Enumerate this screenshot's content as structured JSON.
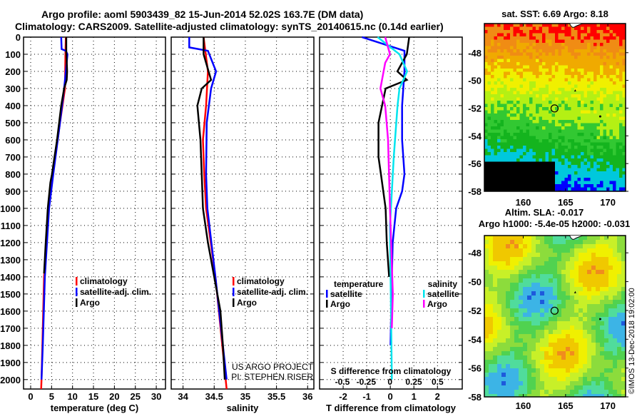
{
  "title_line1": "Argo profile: aoml 5903439_82 15-Jun-2014 52.02S 163.7E (DM data)",
  "title_line2": "Climatology: CARS2009. Satellite-adjusted climatology: synTS_20140615.nc (0.14d earlier)",
  "colors": {
    "argo": "#000000",
    "climatology": "#ff0000",
    "satellite": "#0000ff",
    "s_satellite": "#00e5ee",
    "s_argo": "#ff00ff"
  },
  "depth_axis": {
    "ylim": [
      2055,
      0
    ],
    "ticks": [
      0,
      100,
      200,
      300,
      400,
      500,
      600,
      700,
      800,
      900,
      1000,
      1100,
      1200,
      1300,
      1400,
      1500,
      1600,
      1700,
      1800,
      1900,
      2000
    ]
  },
  "chart_data": [
    {
      "type": "line",
      "xlabel": "temperature (deg C)",
      "xlim": [
        -1.7,
        32.2
      ],
      "xticks": [
        0,
        5,
        10,
        15,
        20,
        25,
        30
      ],
      "legend": [
        "climatology",
        "satellite-adj. clim.",
        "Argo"
      ],
      "series": [
        {
          "name": "climatology",
          "color": "#ff0000",
          "depth": [
            0,
            100,
            300,
            500,
            800,
            1000,
            1400,
            2000,
            2055
          ],
          "values": [
            8.4,
            8.3,
            8.2,
            7.0,
            5.3,
            4.2,
            3.2,
            2.6,
            2.5
          ]
        },
        {
          "name": "satellite-adj. clim.",
          "color": "#0000ff",
          "depth": [
            0,
            70,
            80,
            100,
            200,
            300,
            500,
            800,
            1000,
            1400,
            1800,
            2000
          ],
          "values": [
            7.3,
            7.4,
            8.4,
            8.8,
            8.4,
            8.0,
            7.0,
            5.4,
            4.4,
            3.4,
            2.9,
            2.6
          ]
        },
        {
          "name": "Argo",
          "color": "#000000",
          "depth": [
            0,
            80,
            200,
            250,
            300,
            400,
            500,
            600,
            700,
            800,
            850,
            900,
            1000,
            1200,
            1380
          ],
          "values": [
            8.5,
            8.5,
            8.7,
            8.6,
            8.0,
            7.3,
            6.8,
            6.3,
            5.7,
            5.1,
            4.7,
            4.5,
            4.1,
            3.6,
            3.2
          ]
        }
      ]
    },
    {
      "type": "line",
      "xlabel": "salinity",
      "xlim": [
        33.81,
        36.1
      ],
      "xticks": [
        34,
        34.5,
        35,
        35.5,
        36
      ],
      "legend": [
        "climatology",
        "satellite-adj. clim.",
        "Argo"
      ],
      "annotation": [
        "US ARGO PROJECT",
        "PI: STEPHEN RISER"
      ],
      "series": [
        {
          "name": "climatology",
          "color": "#ff0000",
          "depth": [
            0,
            200,
            400,
            600,
            800,
            1000,
            1400,
            2055
          ],
          "values": [
            34.33,
            34.4,
            34.37,
            34.32,
            34.34,
            34.37,
            34.52,
            34.7
          ]
        },
        {
          "name": "satellite-adj. clim.",
          "color": "#0000ff",
          "depth": [
            0,
            60,
            80,
            200,
            300,
            500,
            800,
            1000,
            1400,
            2000
          ],
          "values": [
            34.1,
            34.1,
            34.4,
            34.53,
            34.45,
            34.38,
            34.37,
            34.39,
            34.52,
            34.7
          ]
        },
        {
          "name": "Argo",
          "color": "#000000",
          "depth": [
            0,
            100,
            250,
            300,
            400,
            600,
            800,
            1000,
            1200,
            1400,
            1600,
            1800,
            2000
          ],
          "values": [
            34.33,
            34.33,
            34.45,
            34.3,
            34.23,
            34.28,
            34.3,
            34.32,
            34.4,
            34.5,
            34.6,
            34.64,
            34.67
          ]
        }
      ]
    },
    {
      "type": "line",
      "xlabel": "T difference from climatology",
      "xlim": [
        -3,
        3.05
      ],
      "xticks": [
        -2,
        -1,
        0,
        1,
        2
      ],
      "secondary_xlabel": "S difference from climatology",
      "secondary_xlim": [
        -0.74,
        0.76
      ],
      "secondary_xticks": [
        -0.5,
        -0.25,
        0,
        0.25,
        0.5
      ],
      "secondary_xtick_labels": [
        "-0.5",
        "-0.25",
        "0",
        "0.25",
        "0.5"
      ],
      "legend_groups": [
        {
          "title": "temperature",
          "items": [
            "satellite",
            "Argo"
          ]
        },
        {
          "title": "salinity",
          "items": [
            "satellite",
            "Argo"
          ]
        }
      ],
      "series": [
        {
          "name": "T satellite",
          "axis": "T",
          "color": "#0000ff",
          "depth": [
            0,
            80,
            200,
            400,
            600,
            800,
            900,
            1000,
            1200,
            1500,
            1800
          ],
          "values": [
            -1.2,
            0.6,
            0.6,
            0.5,
            0.5,
            0.6,
            0.5,
            0.25,
            0.1,
            0.05,
            0.01
          ]
        },
        {
          "name": "T Argo",
          "axis": "T",
          "color": "#000000",
          "depth": [
            0,
            100,
            200,
            250,
            300,
            500,
            700,
            800,
            900,
            1000,
            1200,
            1400
          ],
          "values": [
            0.8,
            0.7,
            0.3,
            0.7,
            -0.2,
            -0.5,
            -0.5,
            -0.4,
            -0.3,
            -0.2,
            -0.15,
            -0.05
          ]
        },
        {
          "name": "S satellite",
          "axis": "S",
          "color": "#00e5ee",
          "depth": [
            0,
            100,
            200,
            300,
            400,
            700,
            1100,
            2000
          ],
          "values": [
            -0.13,
            0.1,
            0.18,
            0.1,
            0.08,
            0.04,
            0.0,
            0.02
          ]
        },
        {
          "name": "S Argo",
          "axis": "S",
          "color": "#ff00ff",
          "depth": [
            0,
            100,
            150,
            300,
            400,
            600,
            1000,
            1500,
            1700
          ],
          "values": [
            -0.05,
            0.0,
            -0.05,
            -0.1,
            -0.05,
            -0.02,
            0.0,
            0.03,
            0.02
          ]
        }
      ]
    },
    {
      "type": "heatmap",
      "title": "sat. SST: 6.69 Argo: 8.18",
      "xlim": [
        155.4,
        172.1
      ],
      "ylim": [
        -58,
        -45.9
      ],
      "xticks": [
        160,
        165,
        170
      ],
      "yticks": [
        -48,
        -50,
        -52,
        -54,
        -56,
        -58
      ],
      "marker": {
        "lon": 163.7,
        "lat": -52.02
      }
    },
    {
      "type": "heatmap",
      "title": "Altim. SLA: -0.017",
      "subtitle": "Argo h1000: -5.4e-05 h2000: -0.031",
      "xlim": [
        155.4,
        172.1
      ],
      "ylim": [
        -58,
        -46.8
      ],
      "xticks": [
        160,
        165,
        170
      ],
      "yticks": [
        -48,
        -50,
        -52,
        -54,
        -56,
        -58
      ],
      "marker": {
        "lon": 163.7,
        "lat": -52.02
      }
    }
  ],
  "legend_labels": {
    "temperature": "temperature",
    "salinity": "salinity",
    "satellite": "satellite",
    "argo": "Argo"
  },
  "watermark": "©IMOS 13-Dec-2018 19:02:00"
}
